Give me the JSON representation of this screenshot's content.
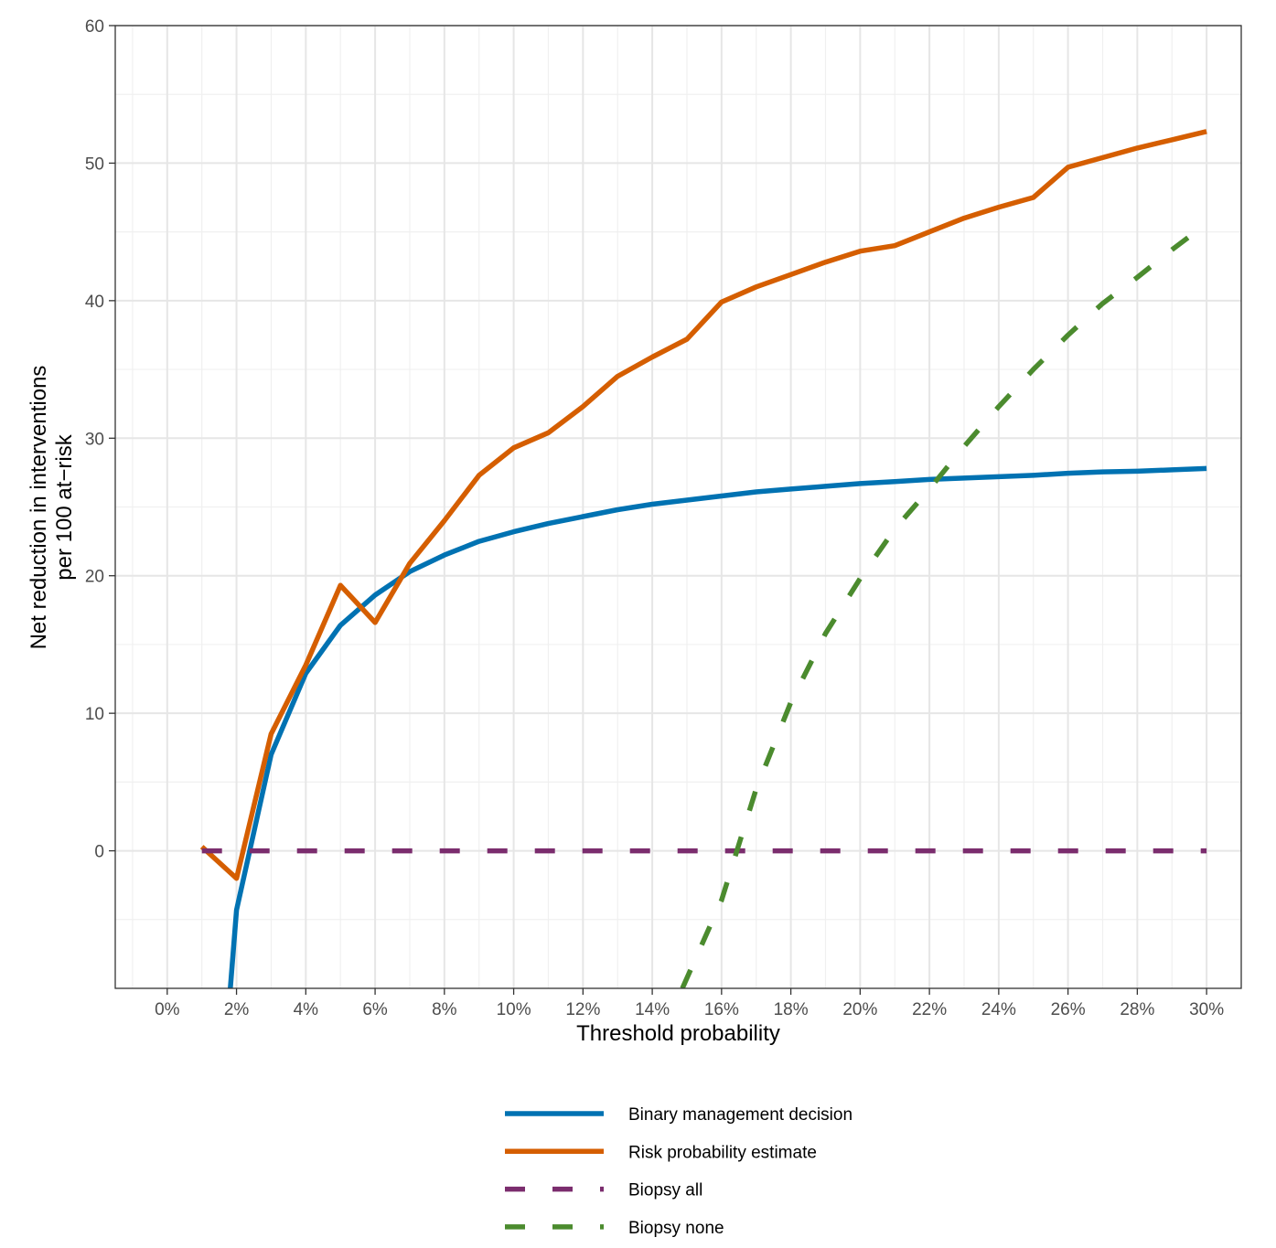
{
  "chart_data": {
    "type": "line",
    "xlabel": "Threshold probability",
    "ylabel_lines": [
      "Net reduction in interventions",
      "per 100 at−risk"
    ],
    "xlim": [
      -0.015,
      0.31
    ],
    "ylim": [
      -10,
      60
    ],
    "x_ticks": [
      0,
      0.02,
      0.04,
      0.06,
      0.08,
      0.1,
      0.12,
      0.14,
      0.16,
      0.18,
      0.2,
      0.22,
      0.24,
      0.26,
      0.28,
      0.3
    ],
    "x_tick_labels": [
      "0%",
      "2%",
      "4%",
      "6%",
      "8%",
      "10%",
      "12%",
      "14%",
      "16%",
      "18%",
      "20%",
      "22%",
      "24%",
      "26%",
      "28%",
      "30%"
    ],
    "y_ticks": [
      0,
      10,
      20,
      30,
      40,
      50,
      60
    ],
    "y_tick_labels": [
      "0",
      "10",
      "20",
      "30",
      "40",
      "50",
      "60"
    ],
    "grid": true,
    "legend_position": "bottom",
    "series": [
      {
        "name": "Binary management decision",
        "color": "#0072B2",
        "dash": "solid",
        "x": [
          0.0182,
          0.02,
          0.03,
          0.04,
          0.05,
          0.06,
          0.07,
          0.08,
          0.09,
          0.1,
          0.11,
          0.12,
          0.13,
          0.14,
          0.15,
          0.16,
          0.17,
          0.18,
          0.19,
          0.2,
          0.21,
          0.22,
          0.23,
          0.24,
          0.25,
          0.26,
          0.27,
          0.28,
          0.29,
          0.3
        ],
        "y": [
          -10,
          -4.3,
          7.0,
          12.9,
          16.4,
          18.6,
          20.3,
          21.5,
          22.5,
          23.2,
          23.8,
          24.3,
          24.8,
          25.2,
          25.5,
          25.8,
          26.1,
          26.3,
          26.5,
          26.7,
          26.85,
          27.0,
          27.1,
          27.2,
          27.3,
          27.45,
          27.55,
          27.6,
          27.7,
          27.8
        ]
      },
      {
        "name": "Risk probability estimate",
        "color": "#D55E00",
        "dash": "solid",
        "x": [
          0.01,
          0.02,
          0.03,
          0.04,
          0.05,
          0.06,
          0.07,
          0.08,
          0.09,
          0.1,
          0.11,
          0.12,
          0.13,
          0.14,
          0.15,
          0.16,
          0.17,
          0.18,
          0.19,
          0.2,
          0.21,
          0.22,
          0.23,
          0.24,
          0.25,
          0.26,
          0.27,
          0.28,
          0.29,
          0.3
        ],
        "y": [
          0.3,
          -2.0,
          8.5,
          13.5,
          19.3,
          16.6,
          20.9,
          24.0,
          27.3,
          29.3,
          30.4,
          32.3,
          34.5,
          35.9,
          37.2,
          39.9,
          41.0,
          41.9,
          42.8,
          43.6,
          44.0,
          45.0,
          46.0,
          46.8,
          47.5,
          49.7,
          50.4,
          51.1,
          51.7,
          52.3
        ]
      },
      {
        "name": "Biopsy all",
        "color": "#7B2D6E",
        "dash": "dashed",
        "x": [
          0.01,
          0.3
        ],
        "y": [
          0,
          0
        ]
      },
      {
        "name": "Biopsy none",
        "color": "#4B8B2E",
        "dash": "dashed",
        "x": [
          0.1487,
          0.16,
          0.17,
          0.18,
          0.19,
          0.2,
          0.21,
          0.22,
          0.23,
          0.24,
          0.25,
          0.26,
          0.27,
          0.28,
          0.29,
          0.3
        ],
        "y": [
          -10,
          -3.6,
          4.5,
          10.8,
          15.8,
          19.8,
          23.4,
          26.3,
          29.4,
          32.3,
          35.0,
          37.5,
          39.8,
          41.7,
          43.7,
          45.6
        ]
      }
    ]
  }
}
